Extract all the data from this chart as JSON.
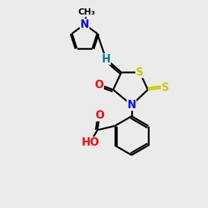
{
  "background_color": "#ebebeb",
  "atom_colors": {
    "C": "#000000",
    "N": "#0000ff",
    "O": "#ff0000",
    "S": "#cccc00",
    "H": "#008080"
  },
  "bond_color": "#000000",
  "bond_width": 1.8,
  "font_size": 11
}
